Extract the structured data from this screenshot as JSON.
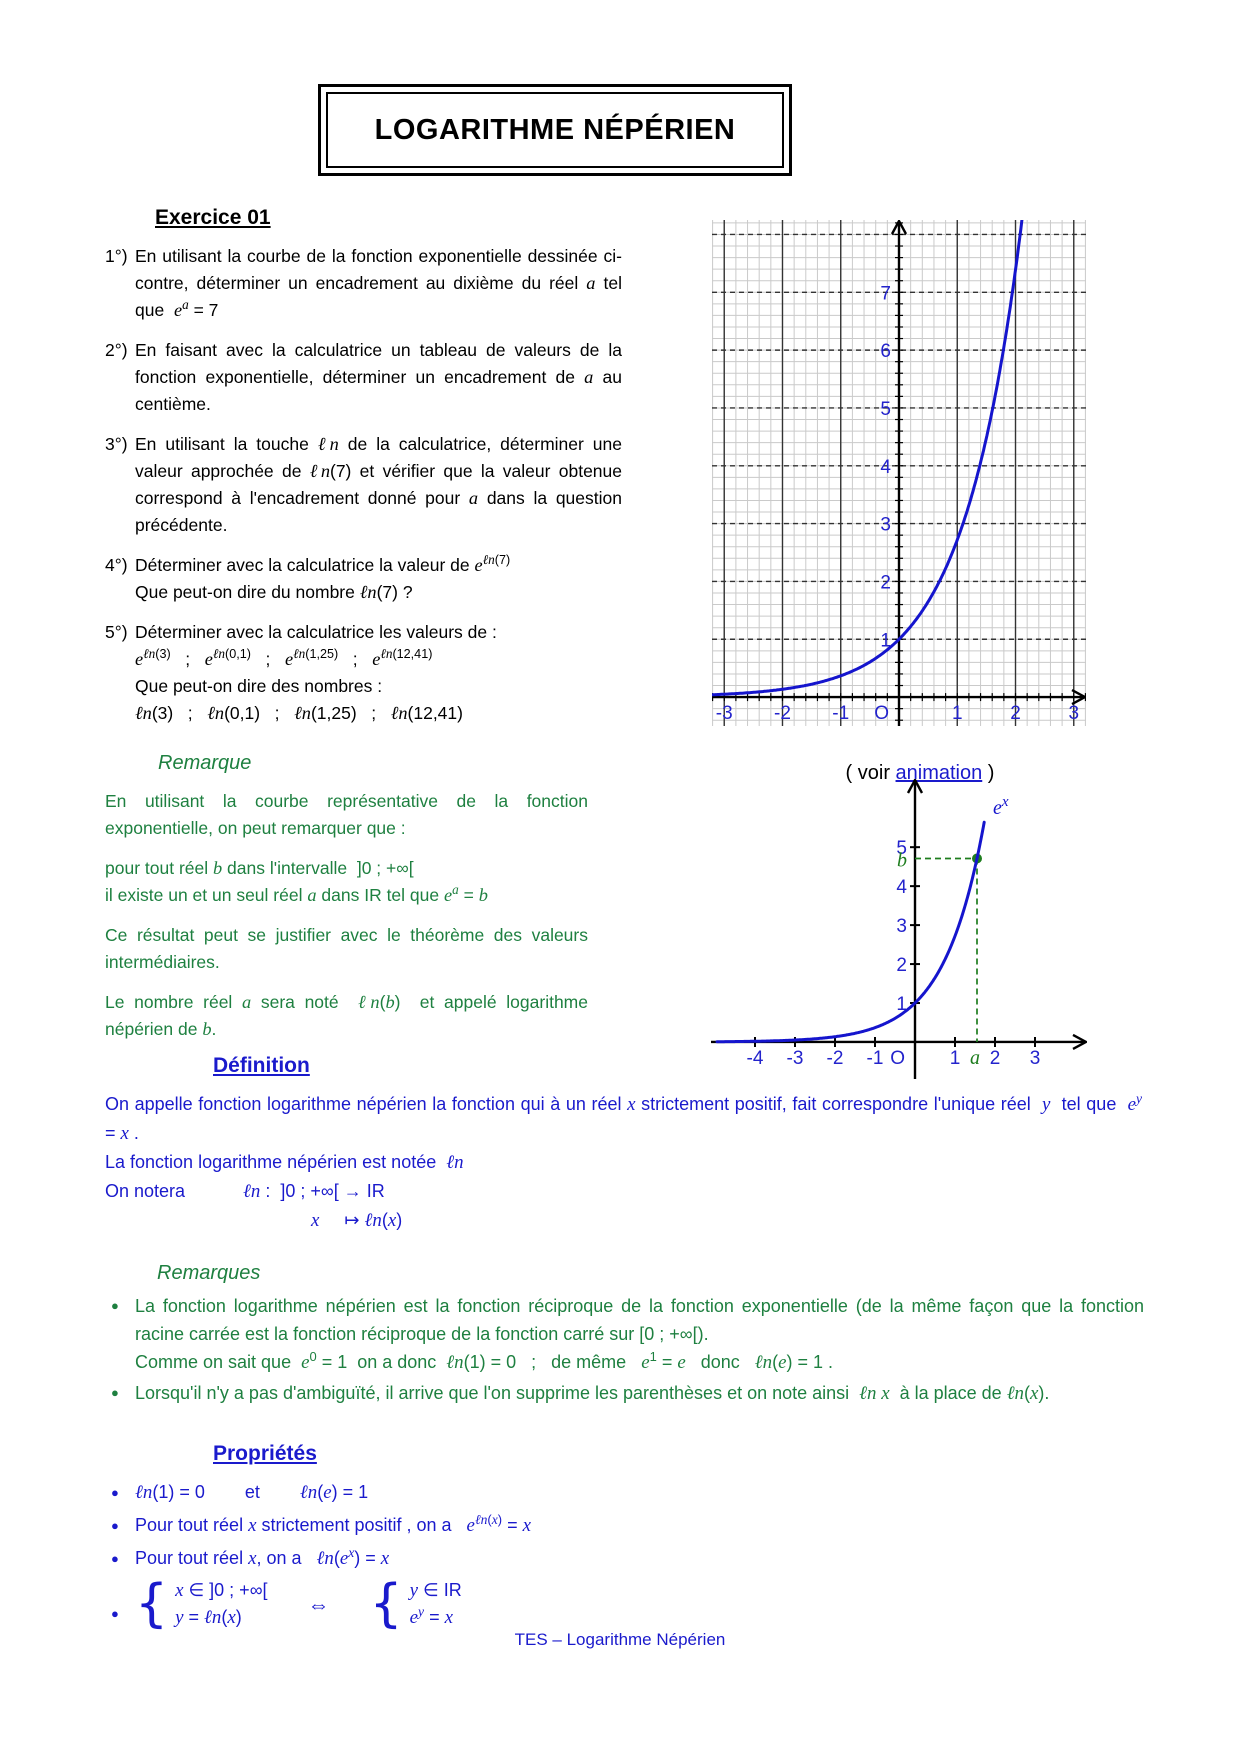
{
  "title": "LOGARITHME NÉPÉRIEN",
  "exercise": {
    "heading": "Exercice 01",
    "questions": [
      {
        "marker": "1°)",
        "lines": [
          "En utilisant la courbe de la fonction exponentielle dessinée ci-contre, déterminer un encadrement au dixième du réel *a* tel que  *e*^{*a*} = 7"
        ]
      },
      {
        "marker": "2°)",
        "lines": [
          "En faisant avec la calculatrice un tableau de valeurs de la fonction exponentielle, déterminer un encadrement de *a* au centième."
        ]
      },
      {
        "marker": "3°)",
        "lines": [
          "En utilisant la touche *ℓn* de la calculatrice, déterminer une valeur approchée de *ℓn*(7) et vérifier que la valeur obtenue correspond à l'encadrement donné pour *a* dans la question précédente."
        ]
      },
      {
        "marker": "4°)",
        "lines": [
          "Déterminer avec la calculatrice la valeur de *e*^{*ℓn*(7)}",
          "Que peut-on dire du nombre *ℓn*(7) ?"
        ]
      },
      {
        "marker": "5°)",
        "lines": [
          "Déterminer avec la calculatrice les valeurs de :",
          "*e*^{*ℓn*(3)}   ;   *e*^{*ℓn*(0,1)}   ;   *e*^{*ℓn*(1,25)}   ;   *e*^{*ℓn*(12,41)}",
          "Que peut-on dire des nombres :",
          "*ℓn*(3)   ;   *ℓn*(0,1)   ;   *ℓn*(1,25)   ;   *ℓn*(12,41)"
        ]
      }
    ]
  },
  "remarque": {
    "heading": "Remarque",
    "paragraphs": [
      {
        "lines": [
          "En utilisant la courbe représentative de la fonction exponentielle, on peut remarquer que :"
        ]
      },
      {
        "lines": [
          "pour tout réel *b* dans l'intervalle  ]0 ; +∞[",
          "il existe un et un seul réel *a* dans IR tel que *e*^{*a*} = *b*"
        ]
      },
      {
        "lines": [
          "Ce résultat peut se justifier avec le théorème des valeurs intermédiaires."
        ]
      },
      {
        "lines": [
          "Le nombre réel *a* sera noté  *ℓn*(*b*)  et appelé logarithme népérien de *b*."
        ]
      }
    ]
  },
  "animation_note": {
    "prefix": "( voir ",
    "link": "animation",
    "suffix": " )"
  },
  "definition": {
    "heading": "Définition",
    "lines": [
      "On appelle fonction logarithme népérien la fonction qui à un réel *x* strictement positif, fait correspondre l'unique réel  *y*  tel que  *e*^{*y*} = *x* .",
      "La fonction logarithme népérien est notée  *ℓn*"
    ],
    "notera": {
      "label": "On notera",
      "signature": "*ℓn* :  ]0 ; +∞[ → IR",
      "mapping": "*x*     ↦ *ℓn*(*x*)"
    }
  },
  "remarques": {
    "heading": "Remarques",
    "bullets": [
      {
        "lines": [
          "La fonction logarithme népérien est la fonction réciproque de la fonction exponentielle (de la même façon que la fonction racine carrée est la fonction réciproque de la fonction carré sur [0 ; +∞[).",
          "Comme on sait que  *e*^{0} = 1  on a donc  *ℓn*(1) = 0   ;   de même   *e*^{1} = *e*   donc   *ℓn*(*e*) = 1 ."
        ]
      },
      {
        "lines": [
          "Lorsqu'il n'y a pas d'ambiguïté, il arrive que l'on supprime les parenthèses et on note ainsi  *ℓn x*  à la place de *ℓn*(*x*)."
        ]
      }
    ]
  },
  "proprietes": {
    "heading": "Propriétés",
    "bullets": [
      "*ℓn*(1) = 0        et        *ℓn*(*e*) = 1",
      "Pour tout réel *x* strictement positif , on a   *e*^{*ℓn*(*x*)} = *x*",
      "Pour tout réel *x*, on a   *ℓn*(*e*^{*x*}) = *x*"
    ],
    "system": {
      "brace": "{",
      "equiv": "⇔",
      "left": [
        "*x* ∈ ]0 ; +∞[",
        "*y* = *ℓn*(*x*)"
      ],
      "right": [
        "*y* ∈ IR",
        "*e*^{*y*} = *x*"
      ]
    }
  },
  "footer": "TES – Logarithme Népérien",
  "colors": {
    "text_green": "#1e8040",
    "text_blue": "#1a1acc",
    "label_blue": "#2323cc",
    "curve_blue": "#1515cd",
    "annotation_green": "#1e7d1e",
    "grid_minor": "#cacaca",
    "grid_major": "#333333",
    "axis_black": "#000000"
  },
  "chart_data": [
    {
      "id": "exp-grid",
      "type": "line",
      "title": "",
      "xlabel": "",
      "ylabel": "",
      "legend": "none",
      "grid_on": true,
      "series": [
        {
          "name": "y = e^x",
          "function": "exp",
          "x_range": [
            -3.21,
            2.14
          ],
          "key_points": [
            [
              -3,
              0.05
            ],
            [
              -2,
              0.14
            ],
            [
              -1,
              0.37
            ],
            [
              0,
              1
            ],
            [
              1,
              2.72
            ],
            [
              2,
              7.39
            ]
          ]
        }
      ],
      "xlim": [
        -3.21,
        3.21
      ],
      "ylim": [
        -0.5,
        8.25
      ],
      "x_ticks": {
        "values": [
          -3,
          -2,
          -1,
          1,
          2,
          3
        ],
        "labels": [
          "-3",
          "-2",
          "-1",
          "1",
          "2",
          "3"
        ]
      },
      "y_ticks": {
        "values": [
          1,
          2,
          3,
          4,
          5,
          6,
          7
        ],
        "labels": [
          "1",
          "2",
          "3",
          "4",
          "5",
          "6",
          "7"
        ]
      },
      "origin_label": "O",
      "grid": {
        "minor_step": 0.2,
        "major_step": 1,
        "major_horizontal_style": "dashed",
        "major_vertical_style": "solid"
      },
      "axis_tick_step": 0.2,
      "axis_tick_half_len": 4
    },
    {
      "id": "exp-anim",
      "type": "line",
      "title": "",
      "xlabel": "",
      "ylabel": "",
      "legend": "none",
      "grid_on": false,
      "series": [
        {
          "name": "y = e^x",
          "function": "exp",
          "x_range": [
            -4.95,
            1.74
          ]
        }
      ],
      "xlim": [
        -5.1,
        4.3
      ],
      "ylim": [
        -0.95,
        6.75
      ],
      "x_ticks": {
        "values": [
          -4,
          -3,
          -2,
          -1,
          1,
          2,
          3
        ],
        "labels": [
          "-4",
          "-3",
          "-2",
          "-1",
          "1",
          "2",
          "3"
        ]
      },
      "y_ticks": {
        "values": [
          1,
          2,
          3,
          4,
          5
        ],
        "labels": [
          "1",
          "2",
          "3",
          "4",
          "5"
        ]
      },
      "origin_label": "O",
      "axis_tick_step": 1,
      "axis_tick_half_len": 5,
      "annotations": {
        "point": {
          "x": 1.55,
          "y": 4.71
        },
        "x_label": "a",
        "y_label": "b",
        "curve_label_text": "e",
        "curve_label_sup": "x",
        "curve_label_pos": [
          1.95,
          5.85
        ]
      }
    }
  ]
}
